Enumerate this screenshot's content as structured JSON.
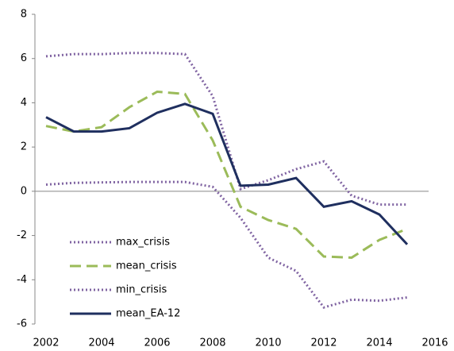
{
  "chart_data": {
    "type": "line",
    "x": [
      2002,
      2003,
      2004,
      2005,
      2006,
      2007,
      2008,
      2009,
      2010,
      2011,
      2012,
      2013,
      2014,
      2015
    ],
    "series": [
      {
        "name": "max_crisis",
        "color": "#8064a2",
        "dash": "dotted",
        "values": [
          6.1,
          6.2,
          6.2,
          6.25,
          6.25,
          6.2,
          4.3,
          0.1,
          0.5,
          1.0,
          1.35,
          -0.2,
          -0.6,
          -0.6
        ]
      },
      {
        "name": "mean_crisis",
        "color": "#9bbb59",
        "dash": "dashed",
        "values": [
          2.95,
          2.7,
          2.9,
          3.8,
          4.5,
          4.4,
          2.3,
          -0.7,
          -1.3,
          -1.7,
          -2.95,
          -3.0,
          -2.2,
          -1.7
        ]
      },
      {
        "name": "min_crisis",
        "color": "#8064a2",
        "dash": "dotted",
        "values": [
          0.3,
          0.38,
          0.4,
          0.42,
          0.42,
          0.42,
          0.2,
          -1.2,
          -3.0,
          -3.6,
          -5.25,
          -4.9,
          -4.95,
          -4.8
        ]
      },
      {
        "name": "mean_EA-12",
        "color": "#1f2f5f",
        "dash": "solid",
        "values": [
          3.35,
          2.7,
          2.7,
          2.85,
          3.55,
          3.95,
          3.5,
          0.25,
          0.3,
          0.6,
          -0.7,
          -0.45,
          -1.05,
          -2.4
        ]
      }
    ],
    "xlim": [
      2001.6,
      2016
    ],
    "xticks": [
      2002,
      2004,
      2006,
      2008,
      2010,
      2012,
      2014,
      2016
    ],
    "ylim": [
      -6,
      8
    ],
    "yticks": [
      -6,
      -4,
      -2,
      0,
      2,
      4,
      6,
      8
    ],
    "grid": false,
    "legend": "lower left"
  }
}
